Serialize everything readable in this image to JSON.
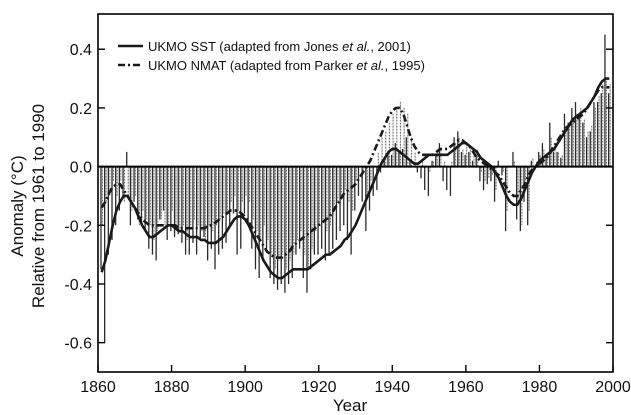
{
  "chart_data": {
    "type": "bar",
    "title": "",
    "xlabel": "Year",
    "ylabel_lines": [
      "Anomaly (°C)",
      "Relative from 1961 to 1990"
    ],
    "xlim": [
      1860,
      2000
    ],
    "ylim": [
      -0.7,
      0.52
    ],
    "xticks": [
      "1860",
      "1880",
      "1900",
      "1920",
      "1940",
      "1960",
      "1980",
      "2000"
    ],
    "yticks": [
      "0.4",
      "0.2",
      "0.0",
      "-0.2",
      "-0.4",
      "-0.6"
    ],
    "grid": false,
    "legend_position": "top-left",
    "colors": {
      "sst": "#1a1a1a",
      "nmat": "#1a1a1a",
      "sst_bars": "#2b2b2b",
      "nmat_bars": "#777777",
      "axis": "#000000"
    },
    "legend": [
      {
        "key": "sst",
        "style": "solid",
        "parts": [
          {
            "text": "UKMO SST (adapted from Jones ",
            "italic": false
          },
          {
            "text": "et al.",
            "italic": true
          },
          {
            "text": ", 2001)",
            "italic": false
          }
        ]
      },
      {
        "key": "nmat",
        "style": "dash-dot",
        "parts": [
          {
            "text": "UKMO NMAT (adapted from Parker ",
            "italic": false
          },
          {
            "text": "et al.",
            "italic": true
          },
          {
            "text": ", 1995)",
            "italic": false
          }
        ]
      }
    ],
    "years": [
      1861,
      1862,
      1863,
      1864,
      1865,
      1866,
      1867,
      1868,
      1869,
      1870,
      1871,
      1872,
      1873,
      1874,
      1875,
      1876,
      1877,
      1878,
      1879,
      1880,
      1881,
      1882,
      1883,
      1884,
      1885,
      1886,
      1887,
      1888,
      1889,
      1890,
      1891,
      1892,
      1893,
      1894,
      1895,
      1896,
      1897,
      1898,
      1899,
      1900,
      1901,
      1902,
      1903,
      1904,
      1905,
      1906,
      1907,
      1908,
      1909,
      1910,
      1911,
      1912,
      1913,
      1914,
      1915,
      1916,
      1917,
      1918,
      1919,
      1920,
      1921,
      1922,
      1923,
      1924,
      1925,
      1926,
      1927,
      1928,
      1929,
      1930,
      1931,
      1932,
      1933,
      1934,
      1935,
      1936,
      1937,
      1938,
      1939,
      1940,
      1941,
      1942,
      1943,
      1944,
      1945,
      1946,
      1947,
      1948,
      1949,
      1950,
      1951,
      1952,
      1953,
      1954,
      1955,
      1956,
      1957,
      1958,
      1959,
      1960,
      1961,
      1962,
      1963,
      1964,
      1965,
      1966,
      1967,
      1968,
      1969,
      1970,
      1971,
      1972,
      1973,
      1974,
      1975,
      1976,
      1977,
      1978,
      1979,
      1980,
      1981,
      1982,
      1983,
      1984,
      1985,
      1986,
      1987,
      1988,
      1989,
      1990,
      1991,
      1992,
      1993,
      1994,
      1995,
      1996,
      1997,
      1998,
      1999
    ],
    "series": [
      {
        "key": "sst",
        "name": "UKMO SST (adapted from Jones et al., 2001)",
        "annual": [
          -0.35,
          -0.6,
          -0.3,
          -0.25,
          -0.2,
          -0.15,
          -0.1,
          0.05,
          -0.2,
          -0.12,
          -0.18,
          -0.2,
          -0.22,
          -0.28,
          -0.3,
          -0.32,
          -0.18,
          -0.15,
          -0.25,
          -0.22,
          -0.24,
          -0.23,
          -0.26,
          -0.3,
          -0.3,
          -0.26,
          -0.3,
          -0.25,
          -0.24,
          -0.32,
          -0.28,
          -0.35,
          -0.3,
          -0.28,
          -0.26,
          -0.2,
          -0.16,
          -0.3,
          -0.28,
          -0.16,
          -0.2,
          -0.28,
          -0.35,
          -0.38,
          -0.32,
          -0.28,
          -0.38,
          -0.4,
          -0.42,
          -0.4,
          -0.43,
          -0.4,
          -0.38,
          -0.3,
          -0.28,
          -0.38,
          -0.43,
          -0.35,
          -0.3,
          -0.3,
          -0.28,
          -0.32,
          -0.3,
          -0.28,
          -0.25,
          -0.22,
          -0.2,
          -0.25,
          -0.3,
          -0.15,
          -0.1,
          -0.12,
          -0.22,
          -0.15,
          -0.1,
          -0.08,
          -0.02,
          0.02,
          0.05,
          0.04,
          0.08,
          0.05,
          0.06,
          0.1,
          0.02,
          0.0,
          -0.02,
          -0.04,
          -0.08,
          -0.1,
          0.02,
          0.04,
          0.08,
          -0.05,
          -0.08,
          -0.1,
          0.1,
          0.12,
          0.05,
          0.04,
          0.05,
          0.02,
          0.04,
          -0.05,
          -0.08,
          -0.06,
          -0.05,
          -0.12,
          0.02,
          -0.03,
          -0.22,
          0.0,
          0.05,
          -0.18,
          -0.22,
          -0.12,
          -0.2,
          0.02,
          0.0,
          0.05,
          0.08,
          0.04,
          0.15,
          0.05,
          0.05,
          0.03,
          0.18,
          0.15,
          0.2,
          0.22,
          0.18,
          0.15,
          0.1,
          0.12,
          0.22,
          0.22,
          0.25,
          0.45,
          0.25
        ],
        "smoothed": [
          -0.36,
          -0.32,
          -0.26,
          -0.2,
          -0.15,
          -0.12,
          -0.1,
          -0.1,
          -0.12,
          -0.14,
          -0.17,
          -0.2,
          -0.22,
          -0.24,
          -0.24,
          -0.23,
          -0.22,
          -0.21,
          -0.2,
          -0.2,
          -0.21,
          -0.22,
          -0.22,
          -0.23,
          -0.24,
          -0.24,
          -0.24,
          -0.25,
          -0.25,
          -0.26,
          -0.26,
          -0.26,
          -0.25,
          -0.24,
          -0.22,
          -0.2,
          -0.18,
          -0.17,
          -0.17,
          -0.18,
          -0.2,
          -0.23,
          -0.26,
          -0.29,
          -0.32,
          -0.34,
          -0.36,
          -0.37,
          -0.38,
          -0.38,
          -0.37,
          -0.36,
          -0.35,
          -0.35,
          -0.35,
          -0.35,
          -0.35,
          -0.34,
          -0.33,
          -0.32,
          -0.31,
          -0.3,
          -0.3,
          -0.29,
          -0.28,
          -0.27,
          -0.25,
          -0.24,
          -0.22,
          -0.2,
          -0.17,
          -0.14,
          -0.11,
          -0.08,
          -0.05,
          -0.02,
          0.01,
          0.03,
          0.05,
          0.06,
          0.06,
          0.05,
          0.04,
          0.03,
          0.02,
          0.01,
          0.01,
          0.02,
          0.03,
          0.04,
          0.04,
          0.04,
          0.04,
          0.04,
          0.04,
          0.05,
          0.06,
          0.07,
          0.08,
          0.08,
          0.07,
          0.06,
          0.05,
          0.03,
          0.02,
          0.01,
          0.0,
          -0.02,
          -0.04,
          -0.07,
          -0.1,
          -0.12,
          -0.13,
          -0.13,
          -0.11,
          -0.08,
          -0.05,
          -0.02,
          0.0,
          0.02,
          0.03,
          0.04,
          0.05,
          0.06,
          0.08,
          0.1,
          0.12,
          0.14,
          0.16,
          0.17,
          0.18,
          0.19,
          0.2,
          0.22,
          0.24,
          0.27,
          0.29,
          0.3,
          0.3
        ]
      },
      {
        "key": "nmat",
        "name": "UKMO NMAT (adapted from Parker et al., 1995)",
        "annual": [
          -0.2,
          -0.12,
          -0.1,
          -0.05,
          -0.1,
          -0.05,
          -0.12,
          -0.1,
          -0.15,
          -0.1,
          -0.2,
          -0.15,
          -0.18,
          -0.2,
          -0.25,
          -0.22,
          -0.18,
          -0.2,
          -0.2,
          -0.15,
          -0.2,
          -0.22,
          -0.2,
          -0.25,
          -0.2,
          -0.18,
          -0.2,
          -0.22,
          -0.25,
          -0.2,
          -0.22,
          -0.2,
          -0.18,
          -0.16,
          -0.15,
          -0.12,
          -0.1,
          -0.15,
          -0.12,
          -0.1,
          -0.12,
          -0.18,
          -0.22,
          -0.25,
          -0.2,
          -0.25,
          -0.3,
          -0.35,
          -0.32,
          -0.3,
          -0.35,
          -0.32,
          -0.3,
          -0.25,
          -0.22,
          -0.3,
          -0.35,
          -0.28,
          -0.22,
          -0.2,
          -0.18,
          -0.22,
          -0.2,
          -0.15,
          -0.12,
          -0.1,
          -0.08,
          -0.12,
          -0.15,
          -0.05,
          0.0,
          -0.02,
          -0.1,
          -0.05,
          0.0,
          0.05,
          0.1,
          0.12,
          0.15,
          0.18,
          0.2,
          0.22,
          0.2,
          0.18,
          0.1,
          0.05,
          0.0,
          0.02,
          0.0,
          -0.02,
          0.02,
          0.05,
          0.06,
          0.02,
          0.0,
          0.02,
          0.08,
          0.1,
          0.06,
          0.08,
          0.06,
          0.05,
          0.06,
          -0.02,
          -0.05,
          -0.04,
          -0.03,
          -0.08,
          0.0,
          -0.02,
          -0.15,
          0.0,
          0.02,
          -0.12,
          -0.2,
          -0.08,
          -0.15,
          0.03,
          0.02,
          0.04,
          0.06,
          0.05,
          0.1,
          0.06,
          0.05,
          0.04,
          0.12,
          0.14,
          0.16,
          0.18,
          0.2,
          0.16,
          0.12,
          0.14,
          0.2,
          0.24,
          0.28,
          0.3,
          0.28
        ],
        "smoothed": [
          -0.14,
          -0.12,
          -0.09,
          -0.07,
          -0.06,
          -0.06,
          -0.08,
          -0.1,
          -0.12,
          -0.14,
          -0.16,
          -0.18,
          -0.19,
          -0.2,
          -0.2,
          -0.2,
          -0.2,
          -0.2,
          -0.2,
          -0.2,
          -0.2,
          -0.21,
          -0.21,
          -0.21,
          -0.21,
          -0.21,
          -0.21,
          -0.21,
          -0.21,
          -0.2,
          -0.2,
          -0.19,
          -0.18,
          -0.17,
          -0.16,
          -0.15,
          -0.15,
          -0.15,
          -0.16,
          -0.17,
          -0.19,
          -0.21,
          -0.23,
          -0.25,
          -0.27,
          -0.29,
          -0.3,
          -0.31,
          -0.31,
          -0.31,
          -0.3,
          -0.29,
          -0.27,
          -0.26,
          -0.25,
          -0.24,
          -0.23,
          -0.22,
          -0.21,
          -0.2,
          -0.19,
          -0.18,
          -0.17,
          -0.15,
          -0.13,
          -0.11,
          -0.09,
          -0.08,
          -0.07,
          -0.06,
          -0.04,
          -0.02,
          0.0,
          0.02,
          0.05,
          0.08,
          0.11,
          0.14,
          0.17,
          0.19,
          0.2,
          0.2,
          0.18,
          0.14,
          0.1,
          0.07,
          0.05,
          0.04,
          0.04,
          0.04,
          0.04,
          0.05,
          0.06,
          0.06,
          0.06,
          0.07,
          0.08,
          0.09,
          0.09,
          0.08,
          0.07,
          0.05,
          0.03,
          0.02,
          0.01,
          0.0,
          -0.01,
          -0.02,
          -0.03,
          -0.05,
          -0.07,
          -0.09,
          -0.1,
          -0.1,
          -0.08,
          -0.06,
          -0.03,
          -0.01,
          0.0,
          0.01,
          0.02,
          0.03,
          0.05,
          0.07,
          0.09,
          0.11,
          0.13,
          0.14,
          0.15,
          0.16,
          0.17,
          0.18,
          0.2,
          0.22,
          0.24,
          0.26,
          0.27,
          0.27,
          0.27
        ]
      }
    ]
  }
}
